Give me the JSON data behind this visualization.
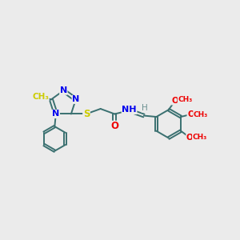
{
  "bg_color": "#ebebeb",
  "bond_color": "#3a7070",
  "bond_width": 1.4,
  "atom_colors": {
    "N": "#0000ee",
    "S": "#cccc00",
    "O": "#ee0000",
    "H": "#6a9090",
    "Me": "#cccc00",
    "C": "#3a7070"
  },
  "xlim": [
    0,
    10
  ],
  "ylim": [
    0,
    10
  ],
  "fig_size": [
    3.0,
    3.0
  ],
  "dpi": 100
}
